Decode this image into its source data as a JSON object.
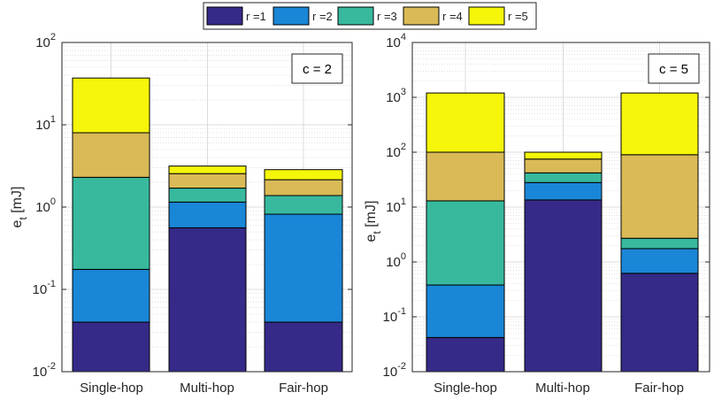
{
  "legend": {
    "entries": [
      {
        "label": "r =1",
        "color": "#352A87"
      },
      {
        "label": "r =2",
        "color": "#1A86D6"
      },
      {
        "label": "r =3",
        "color": "#38B99E"
      },
      {
        "label": "r =4",
        "color": "#D9BA56"
      },
      {
        "label": "r =5",
        "color": "#F5F60A"
      }
    ]
  },
  "chart_data": [
    {
      "type": "bar",
      "stacked": true,
      "scale": "log",
      "annotation": "c = 2",
      "ylabel": "e_t [mJ]",
      "xlabel": "",
      "ylim": [
        0.01,
        100
      ],
      "grid": true,
      "categories": [
        "Single-hop",
        "Multi-hop",
        "Fair-hop"
      ],
      "cumulative_values": [
        [
          0.04,
          0.175,
          2.3,
          8.0,
          37
        ],
        [
          0.56,
          1.15,
          1.7,
          2.55,
          3.15
        ],
        [
          0.04,
          0.82,
          1.38,
          2.15,
          2.85
        ]
      ],
      "yticks": [
        {
          "base": "10",
          "exp": "-2"
        },
        {
          "base": "10",
          "exp": "-1"
        },
        {
          "base": "10",
          "exp": "0"
        },
        {
          "base": "10",
          "exp": "1"
        },
        {
          "base": "10",
          "exp": "2"
        }
      ]
    },
    {
      "type": "bar",
      "stacked": true,
      "scale": "log",
      "annotation": "c = 5",
      "ylabel": "e_t [mJ]",
      "xlabel": "",
      "ylim": [
        0.01,
        10000
      ],
      "grid": true,
      "categories": [
        "Single-hop",
        "Multi-hop",
        "Fair-hop"
      ],
      "cumulative_values": [
        [
          0.042,
          0.38,
          13,
          100,
          1200
        ],
        [
          13.5,
          28,
          42,
          75,
          100
        ],
        [
          0.62,
          1.75,
          2.7,
          90,
          1200
        ]
      ],
      "yticks": [
        {
          "base": "10",
          "exp": "-2"
        },
        {
          "base": "10",
          "exp": "-1"
        },
        {
          "base": "10",
          "exp": "0"
        },
        {
          "base": "10",
          "exp": "1"
        },
        {
          "base": "10",
          "exp": "2"
        },
        {
          "base": "10",
          "exp": "3"
        },
        {
          "base": "10",
          "exp": "4"
        }
      ]
    }
  ]
}
